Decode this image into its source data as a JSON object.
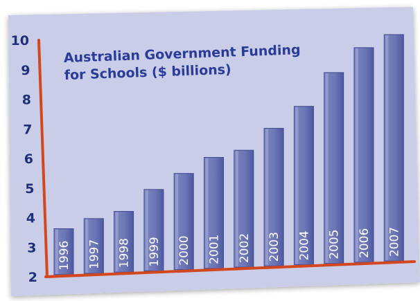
{
  "chart_data": {
    "type": "bar",
    "title_lines": [
      "Australian Government Funding",
      "for Schools ($ billions)"
    ],
    "xlabel": "",
    "ylabel": "",
    "categories": [
      "1996",
      "1997",
      "1998",
      "1999",
      "2000",
      "2001",
      "2002",
      "2003",
      "2004",
      "2005",
      "2006",
      "2007"
    ],
    "values": [
      3.6,
      3.9,
      4.1,
      4.8,
      5.3,
      5.8,
      6.0,
      6.7,
      7.4,
      8.5,
      9.3,
      9.7
    ],
    "y_ticks": [
      "2",
      "3",
      "4",
      "5",
      "6",
      "7",
      "8",
      "9",
      "10"
    ],
    "ylim": [
      2,
      10
    ],
    "grid": false,
    "legend": "none",
    "colors": {
      "bar_top": "#8d95c9",
      "bar_bottom": "#5a63a8",
      "bar_edge": "#3f4a92",
      "axis": "#d2471e",
      "background": "#c9cde7",
      "text": "#1f2f78"
    }
  }
}
